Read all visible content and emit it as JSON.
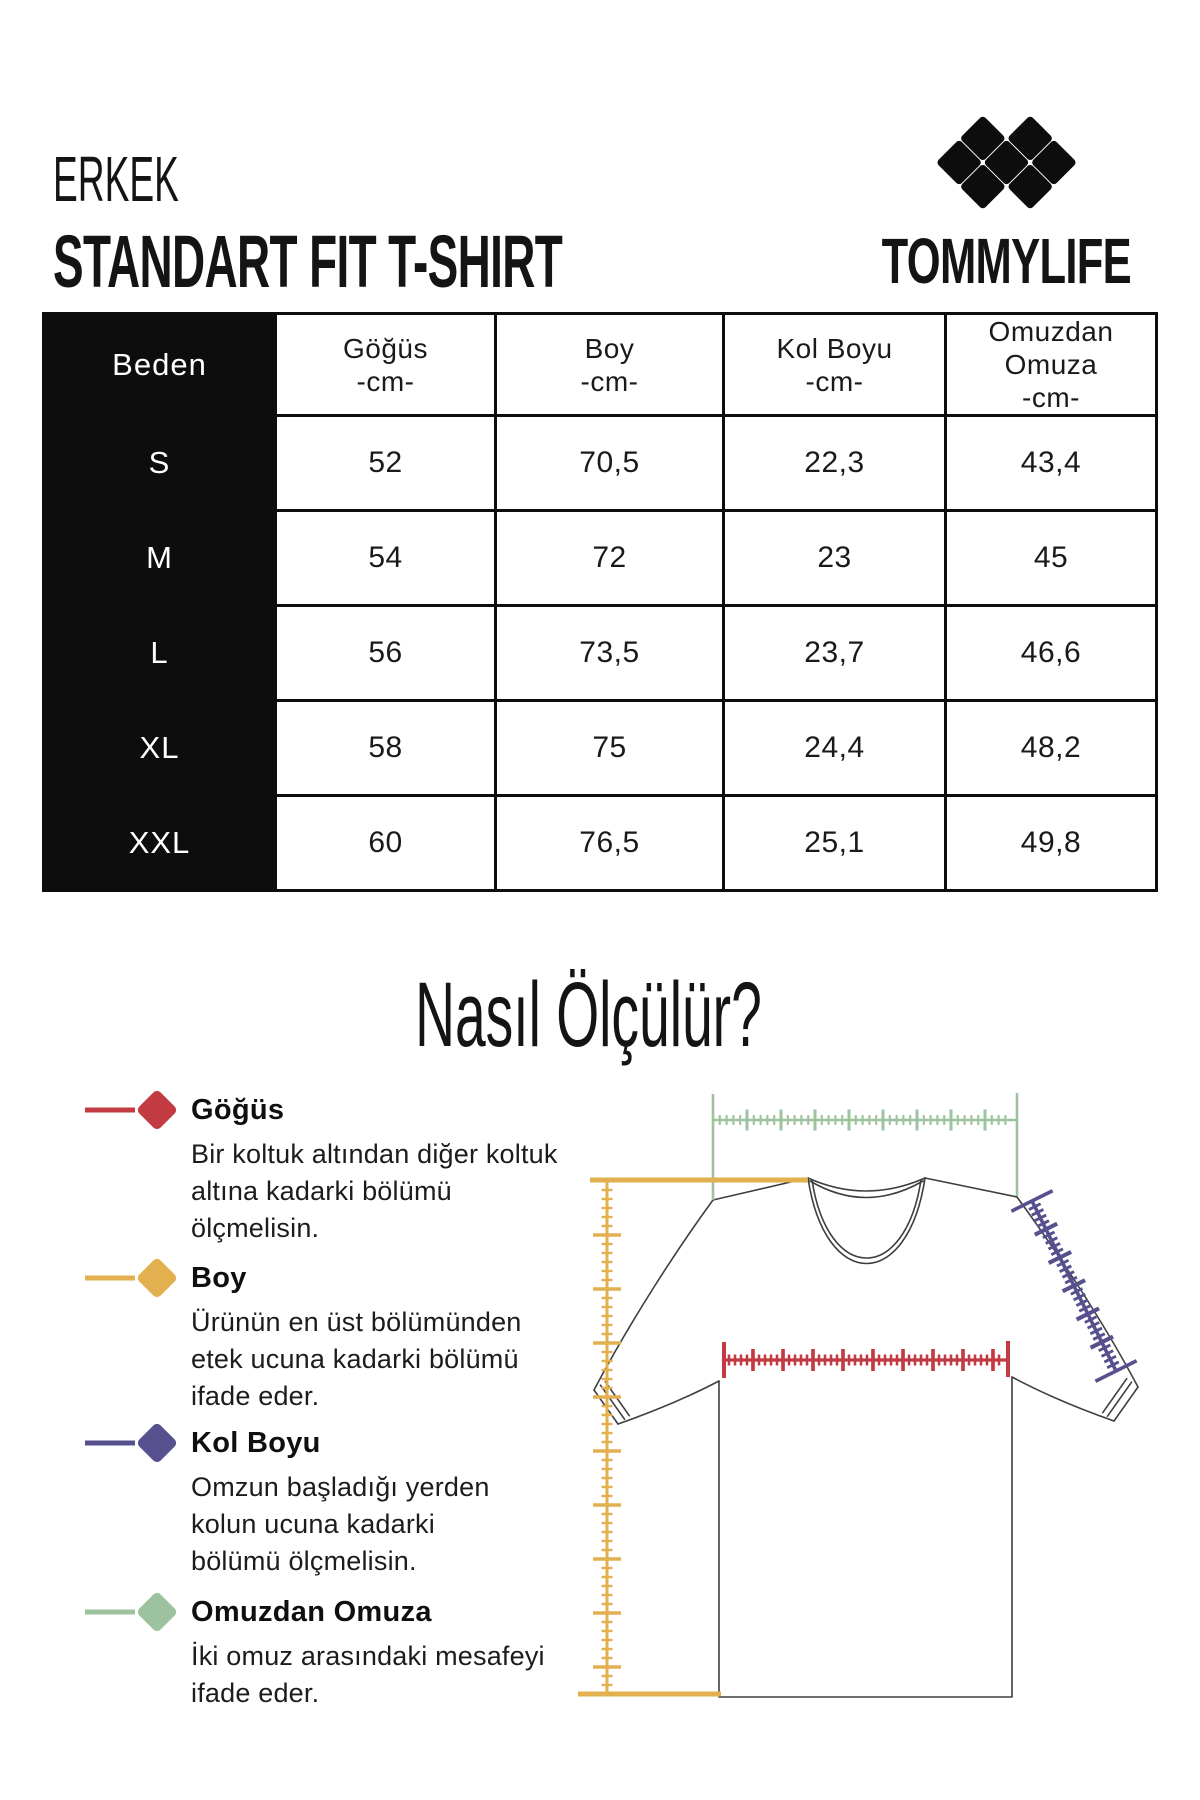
{
  "header": {
    "category": "ERKEK",
    "title": "STANDART FIT T-SHIRT",
    "brand": "TOMMYLIFE"
  },
  "size_table": {
    "size_header": "Beden",
    "columns": [
      {
        "label": "Göğüs",
        "unit": "-cm-"
      },
      {
        "label": "Boy",
        "unit": "-cm-"
      },
      {
        "label": "Kol Boyu",
        "unit": "-cm-"
      },
      {
        "label": "Omuzdan Omuza",
        "unit": "-cm-"
      }
    ],
    "rows": [
      {
        "size": "S",
        "values": [
          "52",
          "70,5",
          "22,3",
          "43,4"
        ]
      },
      {
        "size": "M",
        "values": [
          "54",
          "72",
          "23",
          "45"
        ]
      },
      {
        "size": "L",
        "values": [
          "56",
          "73,5",
          "23,7",
          "46,6"
        ]
      },
      {
        "size": "XL",
        "values": [
          "58",
          "75",
          "24,4",
          "48,2"
        ]
      },
      {
        "size": "XXL",
        "values": [
          "60",
          "76,5",
          "25,1",
          "49,8"
        ]
      }
    ]
  },
  "how_to": {
    "heading": "Nasıl Ölçülür?",
    "items": [
      {
        "title": "Göğüs",
        "description": "Bir koltuk altından diğer koltuk altına kadarki bölümü ölçmelisin.",
        "color": "#c23b42"
      },
      {
        "title": "Boy",
        "description": "Ürünün en üst bölümünden etek ucuna kadarki bölümü ifade eder.",
        "color": "#e2b04e"
      },
      {
        "title": "Kol Boyu",
        "description": "Omzun başladığı yerden kolun ucuna kadarki bölümü ölçmelisin.",
        "color": "#57508e"
      },
      {
        "title": "Omuzdan Omuza",
        "description": "İki omuz arasındaki mesafeyi ifade eder.",
        "color": "#9cc39d"
      }
    ]
  },
  "diagram": {
    "outline_color": "#3f3f3f"
  }
}
